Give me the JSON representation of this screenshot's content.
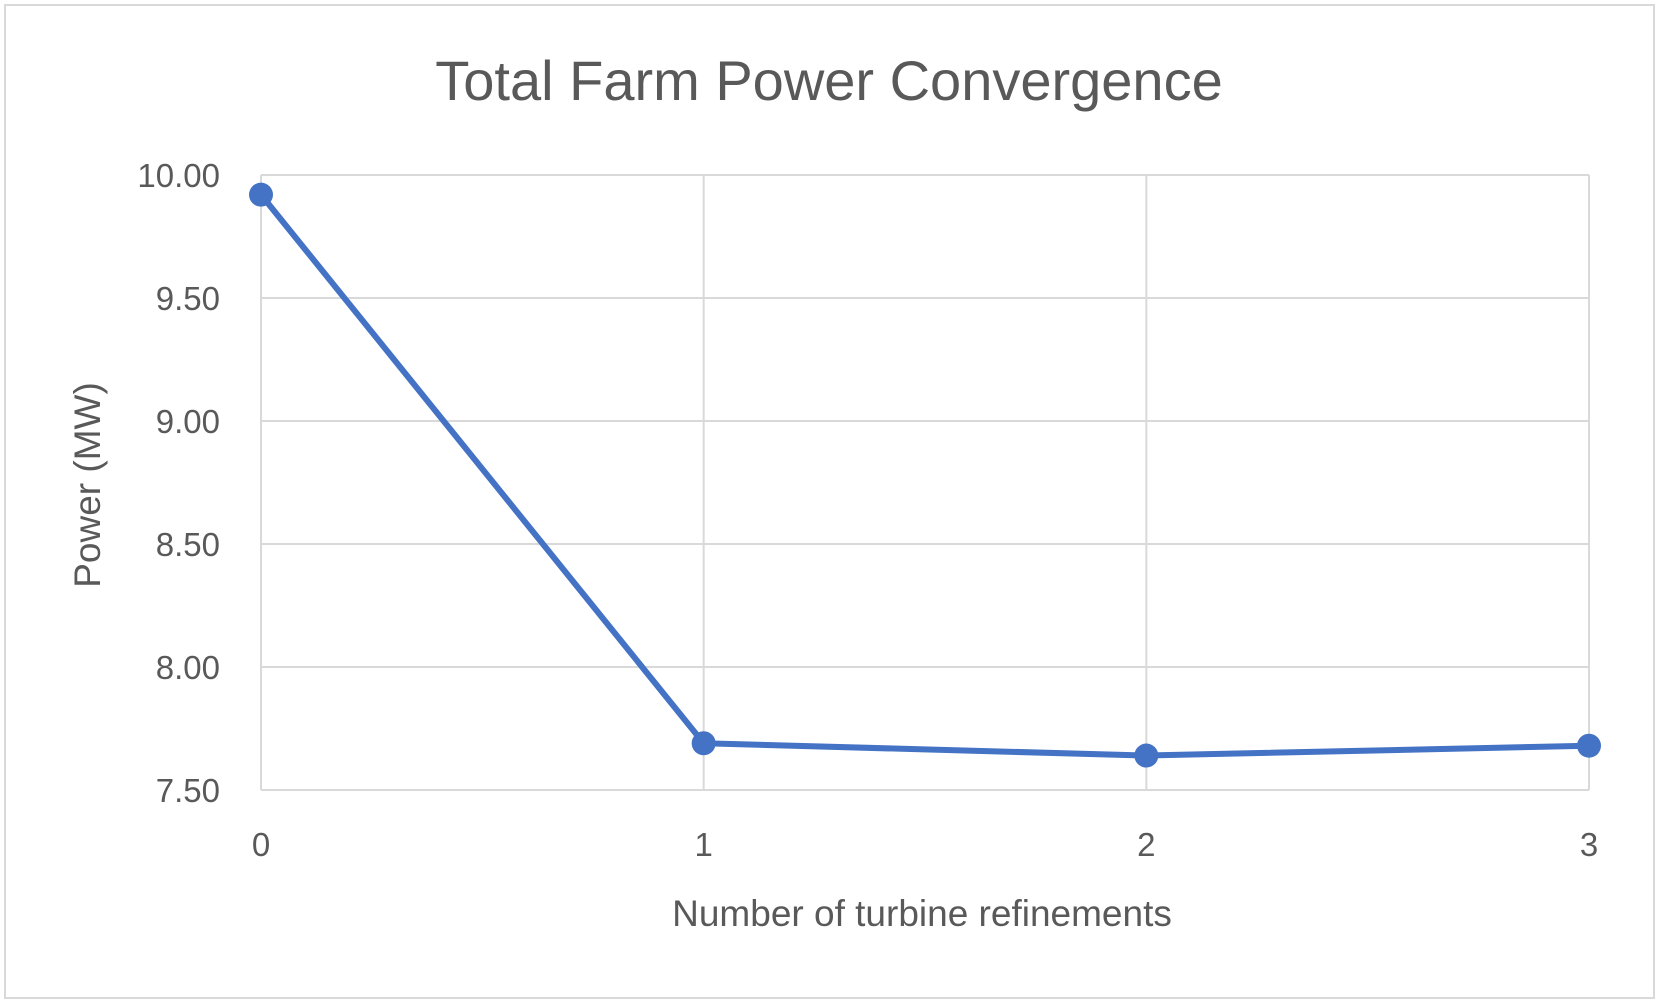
{
  "chart_data": {
    "type": "line",
    "title": "Total Farm Power Convergence",
    "xlabel": "Number of turbine refinements",
    "ylabel": "Power (MW)",
    "x": [
      0,
      1,
      2,
      3
    ],
    "xticks": [
      "0",
      "1",
      "2",
      "3"
    ],
    "yticks": [
      "7.50",
      "8.00",
      "8.50",
      "9.00",
      "9.50",
      "10.00"
    ],
    "ylim": [
      7.5,
      10.0
    ],
    "xlim": [
      0,
      3
    ],
    "grid": true,
    "legend": "none",
    "series": [
      {
        "values": [
          9.92,
          7.69,
          7.64,
          7.68
        ],
        "color": "#4472C4"
      }
    ],
    "colors": {
      "line": "#4472C4",
      "grid": "#d9d9d9",
      "text": "#595959",
      "border": "#d9d9d9"
    }
  }
}
